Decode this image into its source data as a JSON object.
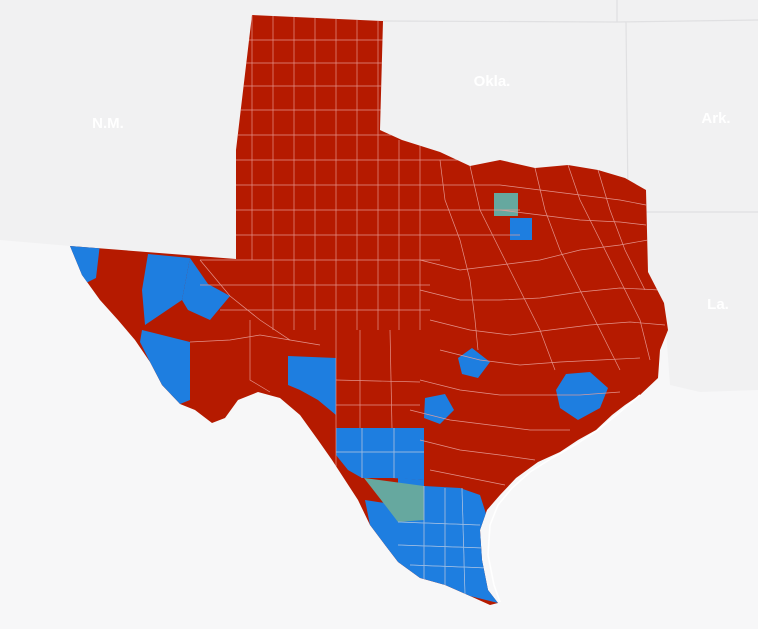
{
  "map": {
    "labels": {
      "nm": "N.M.",
      "okla": "Okla.",
      "ark": "Ark.",
      "la": "La."
    },
    "legend_colors": {
      "red": "#b51a00",
      "blue": "#1e7ee0",
      "tie": "#66a89f"
    },
    "land_color": "#f1f1f2",
    "water_color": "#f7f7f8"
  }
}
